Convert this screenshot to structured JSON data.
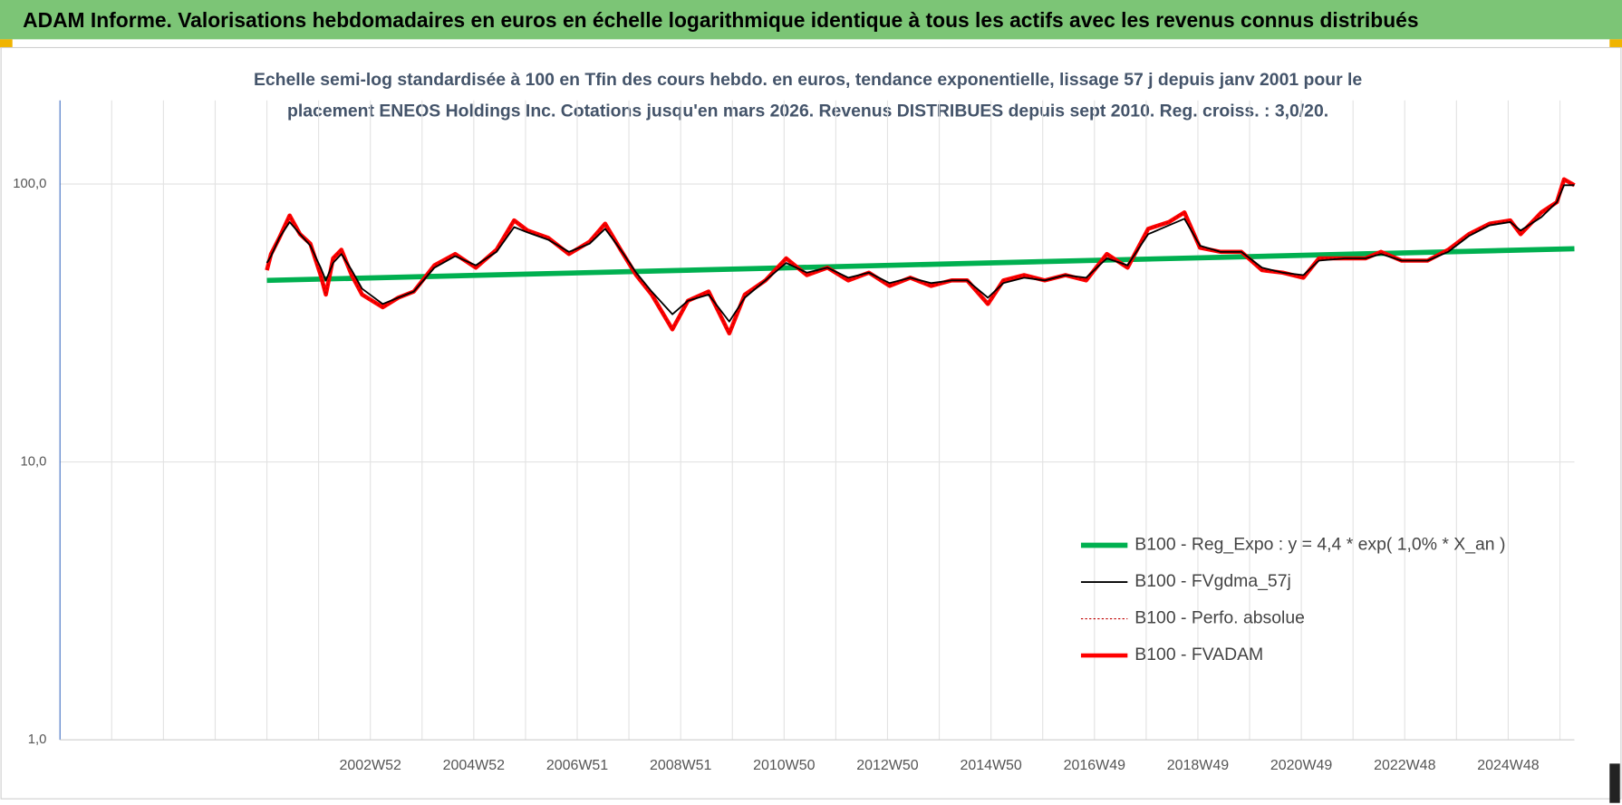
{
  "header": {
    "title": "ADAM Informe. Valorisations hebdomadaires en euros en échelle logarithmique identique à tous les actifs avec les revenus connus distribués"
  },
  "chart_data": {
    "type": "line",
    "title_lines": [
      "Echelle semi-log standardisée à 100 en Tfin des cours hebdo. en euros, tendance exponentielle, lissage 57 j depuis janv 2001 pour le",
      "placement ENEOS Holdings Inc. Cotations jusqu'en mars 2026. Revenus DISTRIBUES depuis sept 2010. Reg. croiss. : 3,0/20."
    ],
    "log_scale": true,
    "grid": true,
    "legend_position": "lower right",
    "ylim": [
      1,
      200
    ],
    "yticks": [
      {
        "value": 1,
        "label": "1,0"
      },
      {
        "value": 10,
        "label": "10,0"
      },
      {
        "value": 100,
        "label": "100,0"
      }
    ],
    "xlim": [
      1997,
      2026.28
    ],
    "xticks": [
      {
        "value": 2003,
        "label": "2002W52"
      },
      {
        "value": 2005,
        "label": "2004W52"
      },
      {
        "value": 2007,
        "label": "2006W51"
      },
      {
        "value": 2009,
        "label": "2008W51"
      },
      {
        "value": 2011,
        "label": "2010W50"
      },
      {
        "value": 2013,
        "label": "2012W50"
      },
      {
        "value": 2015,
        "label": "2014W50"
      },
      {
        "value": 2017,
        "label": "2016W49"
      },
      {
        "value": 2019,
        "label": "2018W49"
      },
      {
        "value": 2021,
        "label": "2020W49"
      },
      {
        "value": 2023,
        "label": "2022W48"
      },
      {
        "value": 2025,
        "label": "2024W48"
      }
    ],
    "xgrid": [
      1998,
      1999,
      2000,
      2001,
      2002,
      2003,
      2004,
      2005,
      2006,
      2007,
      2008,
      2009,
      2010,
      2011,
      2012,
      2013,
      2014,
      2015,
      2016,
      2017,
      2018,
      2019,
      2020,
      2021,
      2022,
      2023,
      2024,
      2025,
      2026
    ],
    "x": [
      2001.0,
      2001.08,
      2001.24,
      2001.44,
      2001.64,
      2001.84,
      2002.04,
      2002.14,
      2002.28,
      2002.44,
      2002.64,
      2002.84,
      2003.24,
      2003.54,
      2003.84,
      2004.24,
      2004.64,
      2005.04,
      2005.44,
      2005.78,
      2006.04,
      2006.44,
      2006.84,
      2007.24,
      2007.54,
      2007.84,
      2008.14,
      2008.44,
      2008.84,
      2009.14,
      2009.54,
      2009.94,
      2010.24,
      2010.64,
      2011.04,
      2011.44,
      2011.84,
      2012.24,
      2012.64,
      2013.04,
      2013.44,
      2013.84,
      2014.24,
      2014.54,
      2014.94,
      2015.24,
      2015.64,
      2016.04,
      2016.44,
      2016.84,
      2017.24,
      2017.64,
      2018.04,
      2018.44,
      2018.74,
      2019.04,
      2019.44,
      2019.84,
      2020.24,
      2020.64,
      2021.04,
      2021.34,
      2021.84,
      2022.24,
      2022.54,
      2022.94,
      2023.44,
      2023.84,
      2024.24,
      2024.64,
      2025.04,
      2025.24,
      2025.64,
      2025.94,
      2026.08,
      2026.28
    ],
    "series": [
      {
        "name": "B100 - Reg_Expo : y = 4,4 * exp( 1,0% *  X_an )",
        "color": "#00b050",
        "width": 5,
        "x": [
          2001.0,
          2026.28
        ],
        "values": [
          45,
          58.5
        ]
      },
      {
        "name": "B100 - FVgdma_57j",
        "color": "#000000",
        "width": 1.6,
        "values": [
          52,
          55,
          64,
          73,
          66,
          60,
          50,
          45,
          52,
          56,
          49,
          42,
          37,
          39,
          41,
          50,
          55,
          51,
          57,
          70,
          67,
          63,
          57,
          61,
          69,
          58,
          48,
          41,
          34,
          38,
          40,
          32,
          39,
          45,
          52,
          48,
          50,
          46,
          48,
          44,
          46,
          44,
          45,
          45,
          39,
          44,
          46,
          45,
          47,
          46,
          54,
          51,
          66,
          71,
          75,
          60,
          57,
          57,
          50,
          48,
          47,
          53,
          54,
          54,
          56,
          53,
          53,
          57,
          65,
          71,
          73,
          68,
          76,
          86,
          99,
          99
        ]
      },
      {
        "name": "B100 - Perfo. absolue",
        "color": "#c00000",
        "width": 1,
        "dash": "2 2",
        "values": [
          49,
          56,
          64,
          77,
          66,
          61,
          47,
          40,
          54,
          58,
          47,
          40,
          36,
          39,
          41,
          51,
          56,
          50,
          58,
          74,
          68,
          64,
          56,
          62,
          72,
          58,
          47,
          40,
          30,
          38,
          41,
          29,
          40,
          45,
          54,
          47,
          50,
          45,
          48,
          43,
          46,
          43,
          45,
          45,
          37,
          45,
          47,
          45,
          47,
          45,
          56,
          50,
          69,
          73,
          79,
          59,
          57,
          57,
          49,
          48,
          46,
          54,
          54,
          54,
          57,
          53,
          53,
          58,
          66,
          72,
          74,
          66,
          79,
          86,
          104,
          99
        ]
      },
      {
        "name": "B100 - FVADAM",
        "color": "#ff0000",
        "width": 4,
        "values": [
          49,
          56,
          64,
          77,
          66,
          61,
          47,
          40,
          54,
          58,
          47,
          40,
          36,
          39,
          41,
          51,
          56,
          50,
          58,
          74,
          68,
          64,
          56,
          62,
          72,
          58,
          47,
          40,
          30,
          38,
          41,
          29,
          40,
          45,
          54,
          47,
          50,
          45,
          48,
          43,
          46,
          43,
          45,
          45,
          37,
          45,
          47,
          45,
          47,
          45,
          56,
          50,
          69,
          73,
          79,
          59,
          57,
          57,
          49,
          48,
          46,
          54,
          54,
          54,
          57,
          53,
          53,
          58,
          66,
          72,
          74,
          66,
          79,
          86,
          104,
          99
        ]
      }
    ]
  }
}
